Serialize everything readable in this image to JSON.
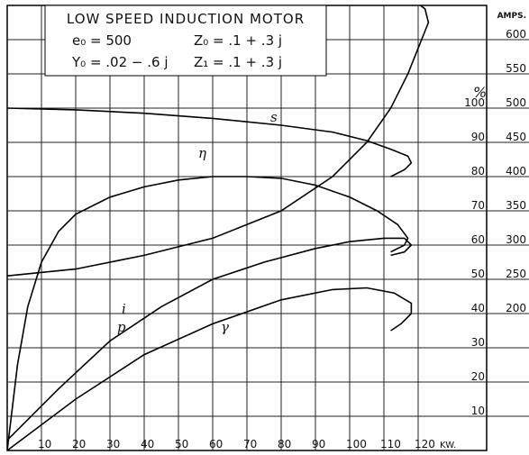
{
  "chart_data": {
    "type": "line",
    "title": "LOW SPEED INDUCTION MOTOR",
    "annotations": [
      "e₀ = 500",
      "Z₀ = .1 + .3 j",
      "Y₀ = .02 − .6 j",
      "Z₁ = .1 + .3 j"
    ],
    "x_label": "KW.",
    "y_label": "%",
    "y2_label": "AMPS.",
    "xlim": [
      0,
      140
    ],
    "xticks": [
      10,
      20,
      30,
      40,
      50,
      60,
      70,
      80,
      90,
      100,
      110,
      120
    ],
    "ylim": [
      0,
      130
    ],
    "yticks": [
      10,
      20,
      30,
      40,
      50,
      60,
      70,
      80,
      90,
      100
    ],
    "y2lim": [
      0,
      650
    ],
    "y2ticks": [
      200,
      250,
      300,
      350,
      400,
      450,
      500,
      550,
      600
    ],
    "grid": true,
    "color": "#000000",
    "series": [
      {
        "name": "s",
        "x": [
          0,
          20,
          40,
          60,
          80,
          95,
          105,
          112,
          117,
          118,
          116,
          112
        ],
        "values": [
          100,
          99.5,
          98.5,
          97,
          95,
          93,
          90.5,
          88,
          86,
          84,
          82,
          80
        ]
      },
      {
        "name": "η",
        "x": [
          0,
          3,
          6,
          10,
          15,
          20,
          30,
          40,
          50,
          60,
          70,
          80,
          90,
          100,
          108,
          114,
          117,
          116,
          112
        ],
        "values": [
          0,
          25,
          42,
          55,
          64,
          69,
          74,
          77,
          79,
          80,
          80,
          79.5,
          77.5,
          74,
          70,
          66,
          62,
          60,
          58
        ]
      },
      {
        "name": "i",
        "axis": "y2",
        "x": [
          0,
          20,
          40,
          60,
          80,
          95,
          105,
          112,
          117,
          121,
          123,
          122,
          118
        ],
        "values": [
          255,
          265,
          285,
          310,
          350,
          400,
          450,
          500,
          550,
          600,
          625,
          645,
          660
        ]
      },
      {
        "name": "p",
        "x": [
          0,
          15,
          30,
          45,
          60,
          75,
          90,
          100,
          110,
          116,
          118,
          116,
          112
        ],
        "values": [
          3,
          18,
          32,
          42,
          50,
          55,
          59,
          61,
          62,
          62,
          60,
          58,
          57
        ]
      },
      {
        "name": "γ",
        "x": [
          0,
          20,
          40,
          60,
          80,
          95,
          105,
          113,
          118,
          118,
          115,
          112
        ],
        "values": [
          0,
          15,
          28,
          37,
          44,
          47,
          47.5,
          46,
          43,
          40,
          37,
          35
        ]
      }
    ]
  }
}
